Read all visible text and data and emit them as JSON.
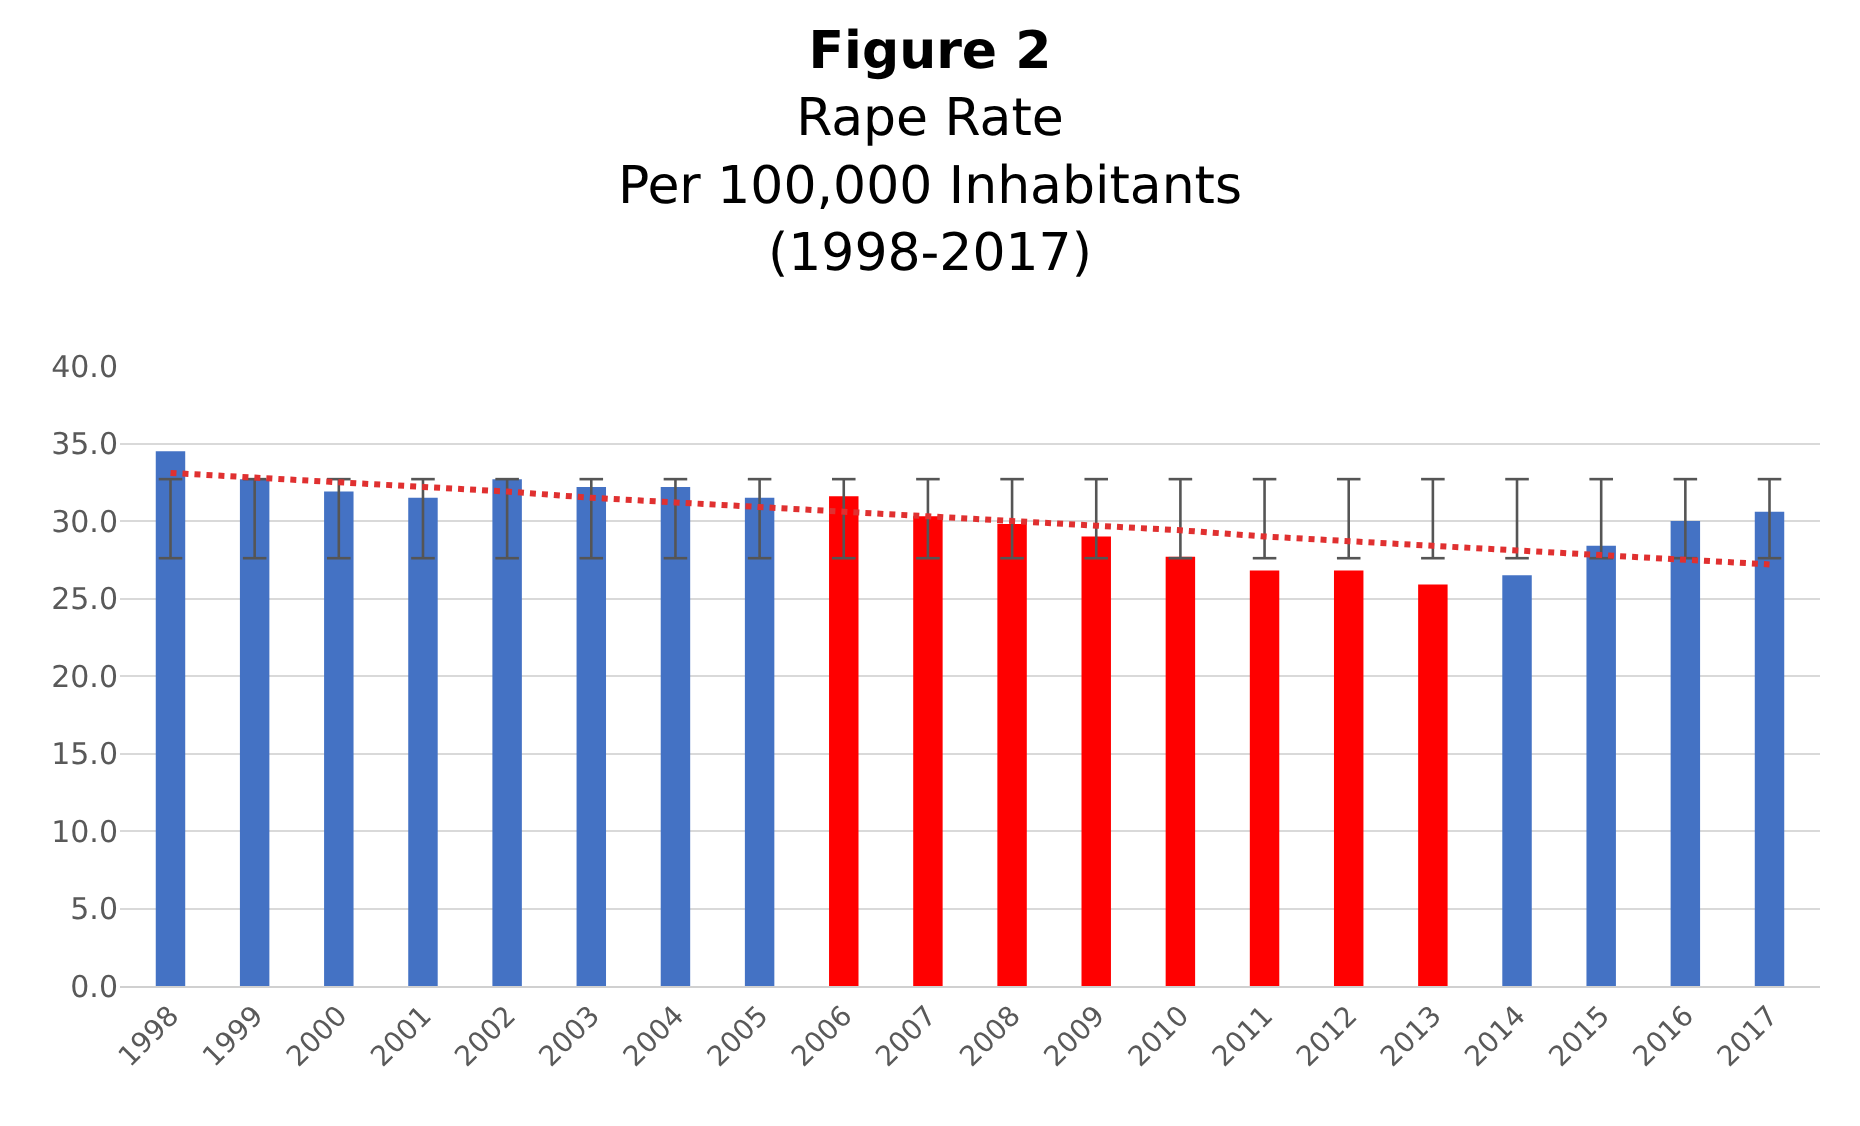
{
  "chart_data": {
    "type": "bar",
    "title": "Figure 2",
    "subtitle": "Rape Rate\nPer 100,000 Inhabitants\n(1998-2017)",
    "categories": [
      "1998",
      "1999",
      "2000",
      "2001",
      "2002",
      "2003",
      "2004",
      "2005",
      "2006",
      "2007",
      "2008",
      "2009",
      "2010",
      "2011",
      "2012",
      "2013",
      "2014",
      "2015",
      "2016",
      "2017"
    ],
    "series": [
      {
        "values": [
          34.5,
          32.7,
          31.9,
          31.5,
          32.7,
          32.2,
          32.2,
          31.5,
          31.6,
          30.3,
          29.8,
          29.0,
          27.7,
          26.8,
          26.8,
          25.9,
          26.5,
          28.4,
          30.0,
          30.6
        ],
        "colors": [
          "#4472c4",
          "#4472c4",
          "#4472c4",
          "#4472c4",
          "#4472c4",
          "#4472c4",
          "#4472c4",
          "#4472c4",
          "#ff0000",
          "#ff0000",
          "#ff0000",
          "#ff0000",
          "#ff0000",
          "#ff0000",
          "#ff0000",
          "#ff0000",
          "#4472c4",
          "#4472c4",
          "#4472c4",
          "#4472c4"
        ],
        "errors": [
          [
            27.6,
            32.7
          ],
          [
            27.6,
            32.7
          ],
          [
            27.6,
            32.7
          ],
          [
            27.6,
            32.7
          ],
          [
            27.6,
            32.7
          ],
          [
            27.6,
            32.7
          ],
          [
            27.6,
            32.7
          ],
          [
            27.6,
            32.7
          ],
          [
            27.6,
            32.7
          ],
          [
            27.6,
            32.7
          ],
          [
            27.6,
            32.7
          ],
          [
            27.6,
            32.7
          ],
          [
            27.6,
            32.7
          ],
          [
            27.6,
            32.7
          ],
          [
            27.6,
            32.7
          ],
          [
            27.6,
            32.7
          ],
          [
            27.6,
            32.7
          ],
          [
            27.6,
            32.7
          ],
          [
            27.6,
            32.7
          ],
          [
            27.6,
            32.7
          ]
        ]
      },
      {
        "type": "line",
        "values": [
          33.1,
          32.8,
          32.5,
          32.2,
          31.9,
          31.5,
          31.2,
          30.9,
          30.6,
          30.3,
          30.0,
          29.7,
          29.4,
          29.0,
          28.7,
          28.4,
          28.1,
          27.8,
          27.5,
          27.2
        ],
        "color": "#e03030",
        "line_style": "dotted"
      }
    ],
    "ylim": [
      0,
      40
    ],
    "yticks": [
      {
        "value": 0,
        "label": "0.0"
      },
      {
        "value": 5,
        "label": "5.0"
      },
      {
        "value": 10,
        "label": "10.0"
      },
      {
        "value": 15,
        "label": "15.0"
      },
      {
        "value": 20,
        "label": "20.0"
      },
      {
        "value": 25,
        "label": "25.0"
      },
      {
        "value": 30,
        "label": "30.0"
      },
      {
        "value": 35,
        "label": "35.0"
      },
      {
        "value": 40,
        "label": "40.0"
      }
    ],
    "grid": "y"
  }
}
